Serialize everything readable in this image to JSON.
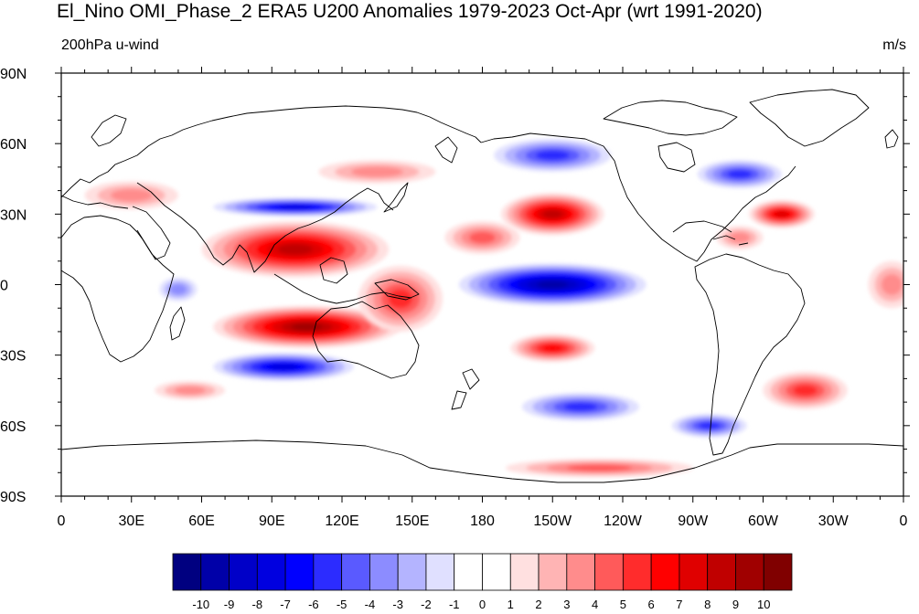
{
  "title": "El_Nino OMI_Phase_2 ERA5 U200 Anomalies 1979-2023 Oct-Apr (wrt 1991-2020)",
  "left_string": "200hPa u-wind",
  "right_string": "m/s",
  "chart_data": {
    "type": "heatmap",
    "title": "El_Nino OMI_Phase_2 ERA5 U200 Anomalies 1979-2023 Oct-Apr (wrt 1991-2020)",
    "variable": "200hPa u-wind",
    "units": "m/s",
    "projection": "cylindrical equidistant",
    "lon_range": [
      0,
      360
    ],
    "lat_range": [
      -90,
      90
    ],
    "x_ticks": [
      {
        "lon": 0,
        "label": "0"
      },
      {
        "lon": 30,
        "label": "30E"
      },
      {
        "lon": 60,
        "label": "60E"
      },
      {
        "lon": 90,
        "label": "90E"
      },
      {
        "lon": 120,
        "label": "120E"
      },
      {
        "lon": 150,
        "label": "150E"
      },
      {
        "lon": 180,
        "label": "180"
      },
      {
        "lon": 210,
        "label": "150W"
      },
      {
        "lon": 240,
        "label": "120W"
      },
      {
        "lon": 270,
        "label": "90W"
      },
      {
        "lon": 300,
        "label": "60W"
      },
      {
        "lon": 330,
        "label": "30W"
      },
      {
        "lon": 360,
        "label": "0"
      }
    ],
    "y_ticks": [
      {
        "lat": 90,
        "label": "90N"
      },
      {
        "lat": 60,
        "label": "60N"
      },
      {
        "lat": 30,
        "label": "30N"
      },
      {
        "lat": 0,
        "label": "0"
      },
      {
        "lat": -30,
        "label": "30S"
      },
      {
        "lat": -60,
        "label": "60S"
      },
      {
        "lat": -90,
        "label": "90S"
      }
    ],
    "colorbar": {
      "labels": [
        "-10",
        "-9",
        "-8",
        "-7",
        "-6",
        "-5",
        "-4",
        "-3",
        "-2",
        "-1",
        "0",
        "1",
        "2",
        "3",
        "4",
        "5",
        "6",
        "7",
        "8",
        "9",
        "10"
      ],
      "colors": [
        "#000080",
        "#0000a8",
        "#0000c8",
        "#0000e0",
        "#0000ff",
        "#2c2cff",
        "#5a5aff",
        "#8c8cff",
        "#b4b4ff",
        "#e0e0ff",
        "#ffffff",
        "#ffffff",
        "#ffe0e0",
        "#ffb4b4",
        "#ff8c8c",
        "#ff5a5a",
        "#ff2c2c",
        "#ff0000",
        "#e00000",
        "#c00000",
        "#a00000",
        "#800000"
      ]
    },
    "anomaly_features": [
      {
        "lon": 100,
        "lat": 15,
        "rx": 40,
        "ry": 12,
        "value": 8
      },
      {
        "lon": 105,
        "lat": -18,
        "rx": 40,
        "ry": 9,
        "value": 9
      },
      {
        "lon": 145,
        "lat": -6,
        "rx": 18,
        "ry": 14,
        "value": 5
      },
      {
        "lon": 100,
        "lat": 33,
        "rx": 35,
        "ry": 4,
        "value": -7
      },
      {
        "lon": 95,
        "lat": -35,
        "rx": 30,
        "ry": 6,
        "value": -7
      },
      {
        "lon": 210,
        "lat": 30,
        "rx": 22,
        "ry": 9,
        "value": 8
      },
      {
        "lon": 180,
        "lat": 20,
        "rx": 16,
        "ry": 7,
        "value": 4
      },
      {
        "lon": 210,
        "lat": 0,
        "rx": 40,
        "ry": 9,
        "value": -9
      },
      {
        "lon": 210,
        "lat": -27,
        "rx": 18,
        "ry": 6,
        "value": 6
      },
      {
        "lon": 222,
        "lat": -52,
        "rx": 25,
        "ry": 6,
        "value": -5
      },
      {
        "lon": 210,
        "lat": 55,
        "rx": 25,
        "ry": 7,
        "value": -5
      },
      {
        "lon": 290,
        "lat": 47,
        "rx": 18,
        "ry": 6,
        "value": -5
      },
      {
        "lon": 308,
        "lat": 30,
        "rx": 14,
        "ry": 6,
        "value": 7
      },
      {
        "lon": 318,
        "lat": -45,
        "rx": 18,
        "ry": 8,
        "value": 5
      },
      {
        "lon": 277,
        "lat": -60,
        "rx": 16,
        "ry": 5,
        "value": -5
      },
      {
        "lon": 230,
        "lat": -78,
        "rx": 40,
        "ry": 4,
        "value": 4
      },
      {
        "lon": 55,
        "lat": -45,
        "rx": 15,
        "ry": 4,
        "value": 3
      },
      {
        "lon": 30,
        "lat": 38,
        "rx": 20,
        "ry": 6,
        "value": 3
      },
      {
        "lon": 135,
        "lat": 48,
        "rx": 25,
        "ry": 5,
        "value": 3
      },
      {
        "lon": 50,
        "lat": -2,
        "rx": 8,
        "ry": 5,
        "value": -3
      },
      {
        "lon": 355,
        "lat": 0,
        "rx": 10,
        "ry": 10,
        "value": 3
      },
      {
        "lon": 290,
        "lat": 20,
        "rx": 10,
        "ry": 5,
        "value": 3
      }
    ]
  }
}
